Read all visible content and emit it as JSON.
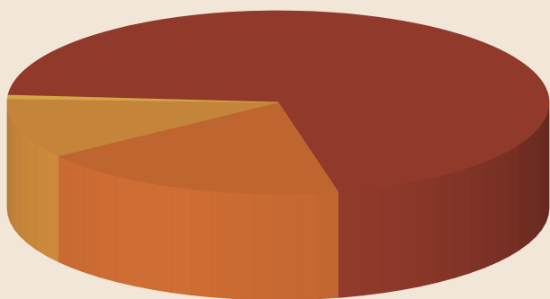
{
  "chart_data": {
    "type": "pie",
    "style": "3d-cylinder",
    "title": "",
    "legend": "none",
    "data_labels": "none",
    "slices": [
      {
        "value": 70.2,
        "color": "#913A2C"
      },
      {
        "value": 18.6,
        "color": "#BF6530"
      },
      {
        "value": 10.6,
        "color": "#C4843A"
      },
      {
        "value": 0.6,
        "color": "#D4A644"
      }
    ]
  },
  "colors": {
    "background": "#F1E6D7"
  }
}
